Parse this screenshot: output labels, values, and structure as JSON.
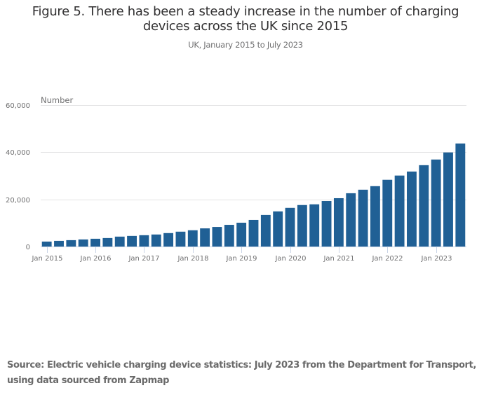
{
  "chart_data": {
    "type": "bar",
    "title": "Figure 5. There has been a steady increase in the number of charging devices across the UK since 2015",
    "title_lines": [
      "Figure 5. There has been a steady increase in the number of charging",
      "devices across the UK since 2015"
    ],
    "subtitle": "UK, January 2015 to July 2023",
    "xlabel": "",
    "ylabel": "Number",
    "ylim": [
      0,
      60000
    ],
    "yticks": [
      0,
      20000,
      40000,
      60000
    ],
    "ytick_labels": [
      "0",
      "20,000",
      "40,000",
      "60,000"
    ],
    "grid": true,
    "bar_color": "#206095",
    "categories": [
      "Jan 2015",
      "Apr 2015",
      "Jul 2015",
      "Oct 2015",
      "Jan 2016",
      "Apr 2016",
      "Jul 2016",
      "Oct 2016",
      "Jan 2017",
      "Apr 2017",
      "Jul 2017",
      "Oct 2017",
      "Jan 2018",
      "Apr 2018",
      "Jul 2018",
      "Oct 2018",
      "Jan 2019",
      "Apr 2019",
      "Jul 2019",
      "Oct 2019",
      "Jan 2020",
      "Apr 2020",
      "Jul 2020",
      "Oct 2020",
      "Jan 2021",
      "Apr 2021",
      "Jul 2021",
      "Oct 2021",
      "Jan 2022",
      "Apr 2022",
      "Jul 2022",
      "Oct 2022",
      "Jan 2023",
      "Apr 2023",
      "Jul 2023"
    ],
    "xtick_labels": [
      "Jan 2015",
      "Jan 2016",
      "Jan 2017",
      "Jan 2018",
      "Jan 2019",
      "Jan 2020",
      "Jan 2021",
      "Jan 2022",
      "Jan 2023"
    ],
    "xtick_indices": [
      0,
      4,
      8,
      12,
      16,
      20,
      24,
      28,
      32
    ],
    "values": [
      2100,
      2400,
      2700,
      3000,
      3300,
      3600,
      4200,
      4500,
      4800,
      5100,
      5700,
      6300,
      6900,
      7700,
      8300,
      9200,
      10100,
      11300,
      13400,
      14900,
      16400,
      17600,
      17900,
      19300,
      20500,
      22600,
      24100,
      25600,
      28300,
      30100,
      31800,
      34500,
      36900,
      39900,
      43700
    ]
  },
  "source": "Source: Electric vehicle charging device statistics: July 2023 from the Department for Transport, using data sourced from Zapmap"
}
